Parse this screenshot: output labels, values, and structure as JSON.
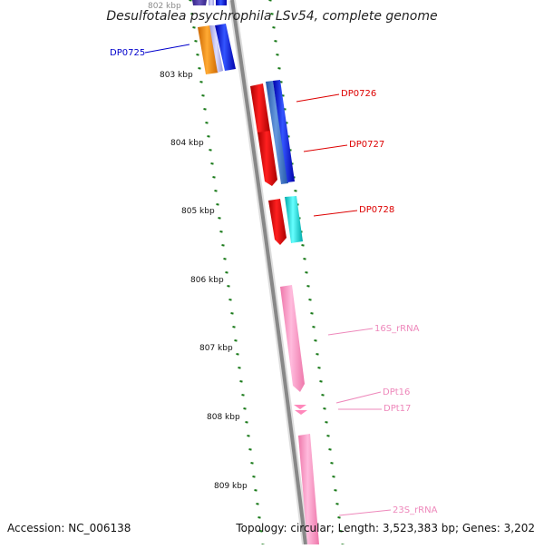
{
  "title": "Desulfotalea psychrophila LSv54, complete genome",
  "accession": "Accession: NC_006138",
  "topology": "Topology: circular; Length: 3,523,383 bp; Genes: 3,202",
  "colors": {
    "backbone": "#888888",
    "tick": "#1a7a1a",
    "cds_forward": "#0000ee",
    "cds_reverse": "#ee0000",
    "rrna": "#ff99cc"
  },
  "kbp_labels": [
    {
      "id": "k802",
      "text": "802 kbp"
    },
    {
      "id": "k803",
      "text": "803 kbp"
    },
    {
      "id": "k804",
      "text": "804 kbp"
    },
    {
      "id": "k805",
      "text": "805 kbp"
    },
    {
      "id": "k806",
      "text": "806 kbp"
    },
    {
      "id": "k807",
      "text": "807 kbp"
    },
    {
      "id": "k808",
      "text": "808 kbp"
    },
    {
      "id": "k809",
      "text": "809 kbp"
    }
  ],
  "gene_labels": [
    {
      "id": "dp0725",
      "text": "DP0725",
      "color": "#0000cc"
    },
    {
      "id": "dp0726",
      "text": "DP0726",
      "color": "#dd0000"
    },
    {
      "id": "dp0727",
      "text": "DP0727",
      "color": "#dd0000"
    },
    {
      "id": "dp0728",
      "text": "DP0728",
      "color": "#dd0000"
    },
    {
      "id": "rrna16s",
      "text": "16S_rRNA",
      "color": "#ee88bb"
    },
    {
      "id": "dpt16",
      "text": "DPt16",
      "color": "#ee88bb"
    },
    {
      "id": "dpt17",
      "text": "DPt17",
      "color": "#ee88bb"
    },
    {
      "id": "rrna23s",
      "text": "23S_rRNA",
      "color": "#ee88bb"
    }
  ]
}
